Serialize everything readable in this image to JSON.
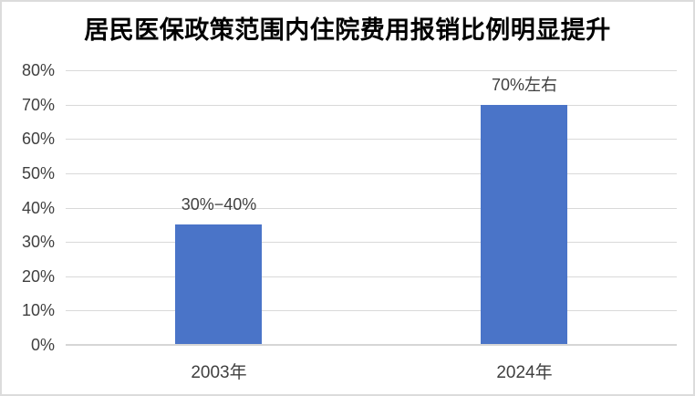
{
  "chart_data": {
    "type": "bar",
    "title": "居民医保政策范围内住院费用报销比例明显提升",
    "categories": [
      "2003年",
      "2024年"
    ],
    "values": [
      35,
      70
    ],
    "value_labels": [
      "30%−40%",
      "70%左右"
    ],
    "y_ticks": [
      "0%",
      "10%",
      "20%",
      "30%",
      "40%",
      "50%",
      "60%",
      "70%",
      "80%"
    ],
    "y_tick_values": [
      0,
      10,
      20,
      30,
      40,
      50,
      60,
      70,
      80
    ],
    "ylim": [
      0,
      80
    ],
    "grid": true,
    "legend": false,
    "xlabel": "",
    "ylabel": ""
  },
  "colors": {
    "bar": "#4a74c8",
    "gridline": "#d9d9d9",
    "axis_line": "#d6d6d6",
    "tick_text": "#404040",
    "title_text": "#000000",
    "border": "#dcdcdc",
    "background": "#ffffff"
  }
}
